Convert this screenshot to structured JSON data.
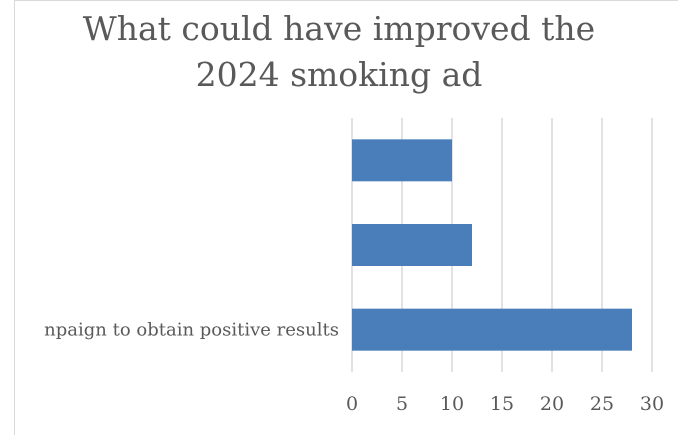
{
  "chart_data": {
    "type": "bar",
    "orientation": "horizontal",
    "title_lines": [
      "What could have improved the",
      "2024 smoking ad"
    ],
    "categories": [
      "",
      "",
      "npaign to obtain positive results"
    ],
    "values": [
      10,
      12,
      28
    ],
    "xlim": [
      0,
      30
    ],
    "xticks": [
      "0",
      "5",
      "10",
      "15",
      "20",
      "25",
      "30"
    ],
    "grid": "vertical",
    "bar_color": "#4a7ebb",
    "grid_color": "#d9d9d9",
    "text_color": "#595959"
  }
}
